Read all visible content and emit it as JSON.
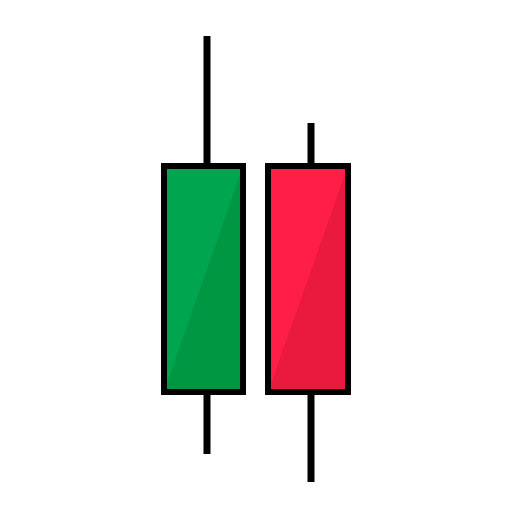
{
  "icon": {
    "name": "candlestick-chart-icon",
    "colors": {
      "background": "#ffffff",
      "outline": "#000000",
      "bullish_fill": "#00A64F",
      "bullish_shade": "#009743",
      "bearish_fill": "#FF1E46",
      "bearish_shade": "#EA1A3E"
    },
    "candles": [
      {
        "name": "bullish-candle",
        "direction": "up"
      },
      {
        "name": "bearish-candle",
        "direction": "down"
      }
    ]
  }
}
